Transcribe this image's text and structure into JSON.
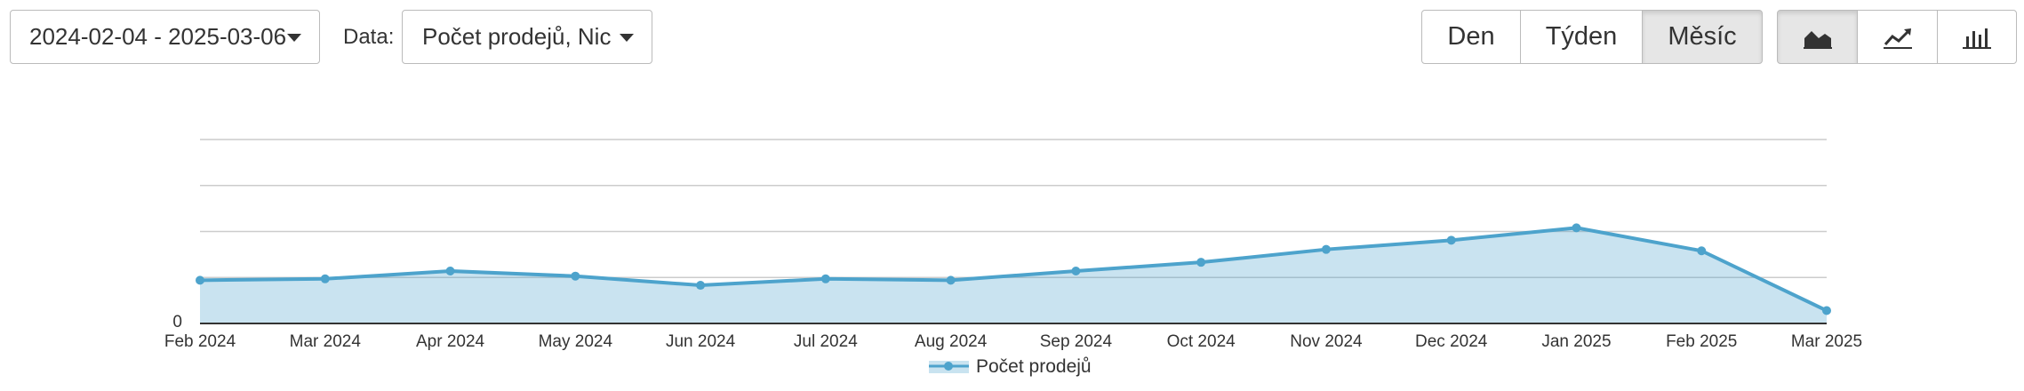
{
  "toolbar": {
    "date_range": "2024-02-04 - 2025-03-06",
    "data_label": "Data:",
    "data_select": "Počet prodejů, Nic",
    "periods": [
      "Den",
      "Týden",
      "Měsíc"
    ],
    "active_period": 2
  },
  "chart_data": {
    "type": "area",
    "categories": [
      "Feb 2024",
      "Mar 2024",
      "Apr 2024",
      "May 2024",
      "Jun 2024",
      "Jul 2024",
      "Aug 2024",
      "Sep 2024",
      "Oct 2024",
      "Nov 2024",
      "Dec 2024",
      "Jan 2025",
      "Feb 2025",
      "Mar 2025"
    ],
    "series": [
      {
        "name": "Počet prodejů",
        "color": "#4da3cc",
        "values": [
          0.94,
          0.97,
          1.14,
          1.03,
          0.83,
          0.97,
          0.94,
          1.14,
          1.33,
          1.61,
          1.81,
          2.08,
          1.58,
          0.28
        ]
      }
    ],
    "ylim": [
      0,
      4
    ],
    "yticks": [
      0
    ],
    "gridlines": [
      1,
      2,
      3,
      4
    ],
    "grid": true
  }
}
